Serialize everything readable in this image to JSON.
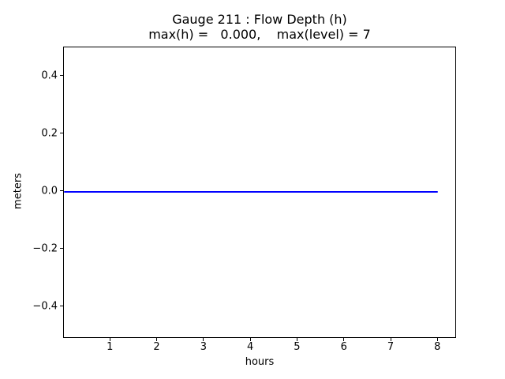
{
  "chart_data": {
    "type": "line",
    "title": "Gauge 211 : Flow Depth (h)",
    "subtitle": "max(h) =   0.000,    max(level) = 7",
    "xlabel": "hours",
    "ylabel": "meters",
    "xlim": [
      0,
      8.4
    ],
    "ylim": [
      -0.51,
      0.5
    ],
    "xticks": [
      1,
      2,
      3,
      4,
      5,
      6,
      7,
      8
    ],
    "xtick_labels": [
      "1",
      "2",
      "3",
      "4",
      "5",
      "6",
      "7",
      "8"
    ],
    "yticks": [
      0.4,
      0.2,
      0.0,
      -0.2,
      -0.4
    ],
    "ytick_labels": [
      "0.4",
      "0.2",
      "0.0",
      "−0.2",
      "−0.4"
    ],
    "grid": false,
    "axis_color": "#000000",
    "background_color": "#ffffff",
    "series": [
      {
        "name": "h",
        "color": "#0000ff",
        "x": [
          0,
          8
        ],
        "y": [
          0,
          0
        ]
      }
    ]
  }
}
